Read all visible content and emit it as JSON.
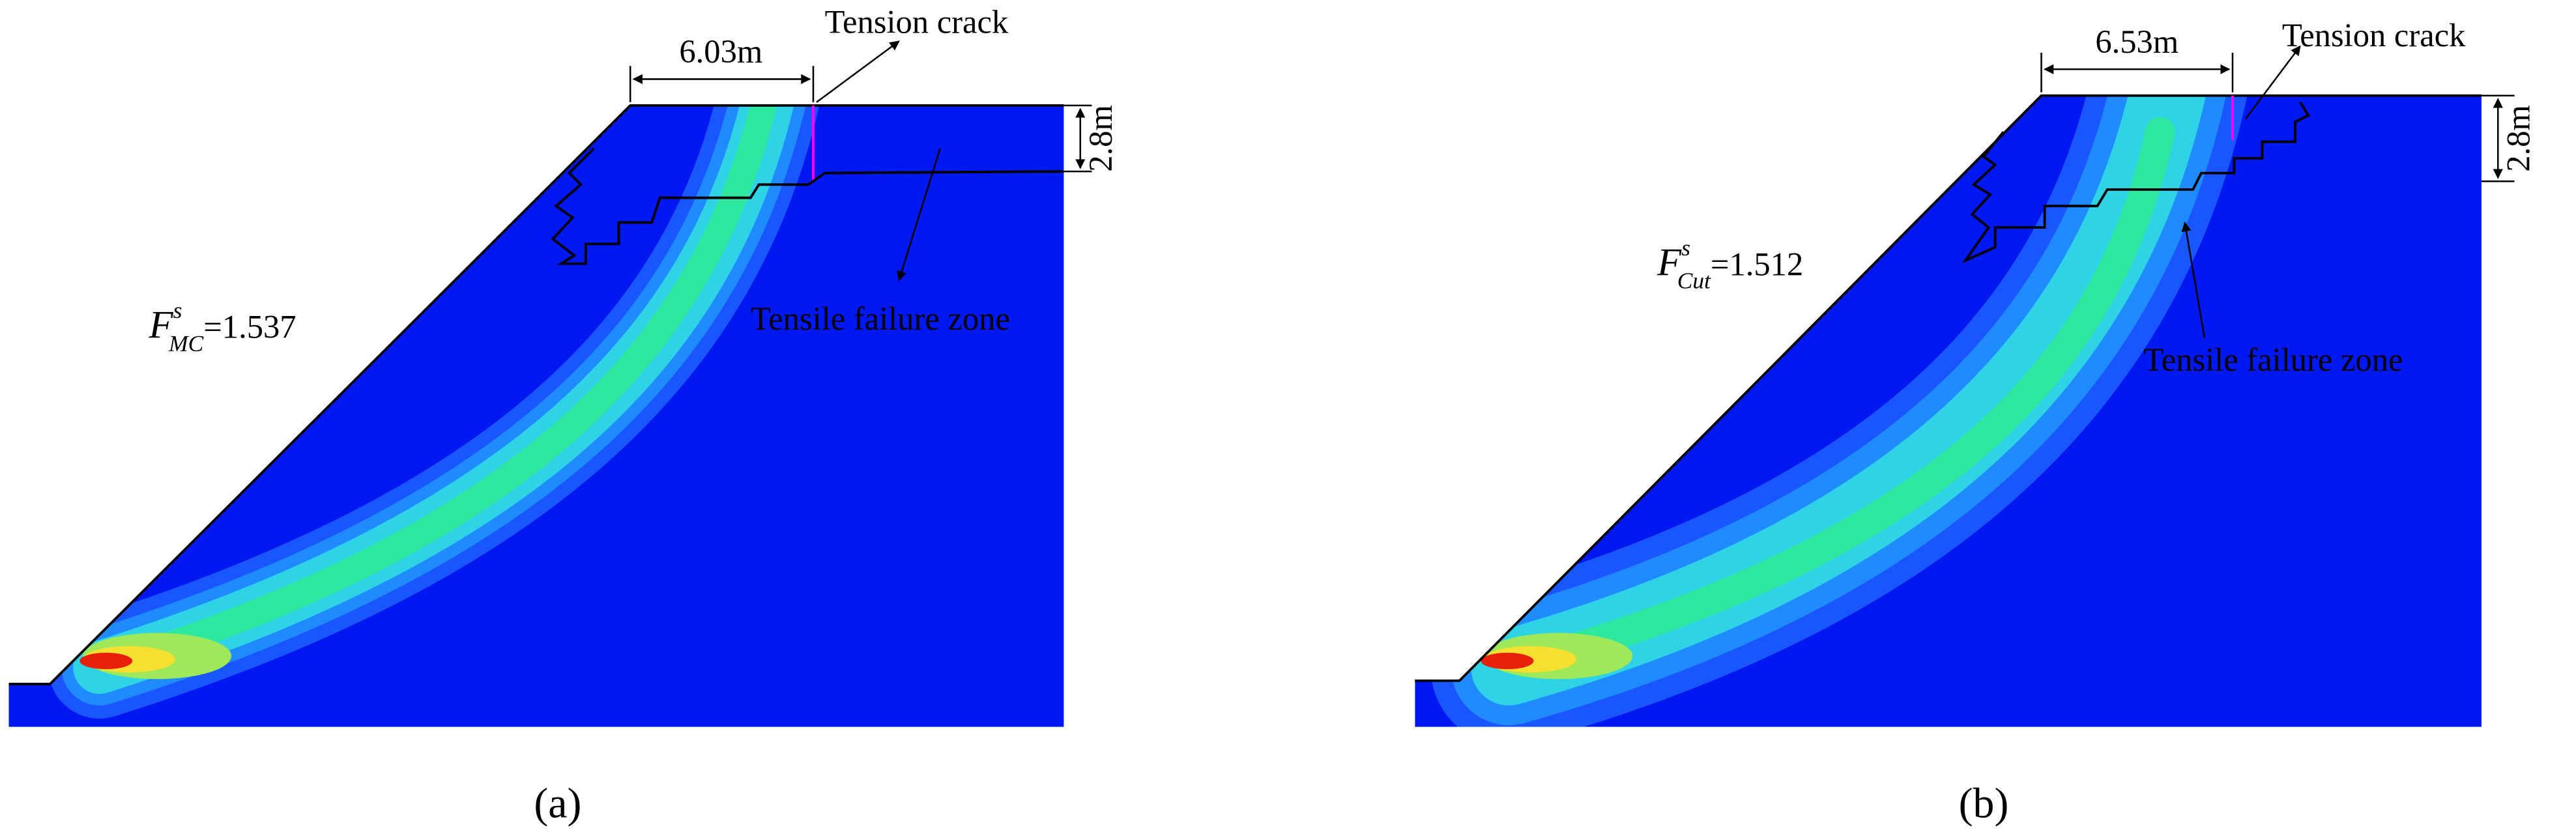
{
  "panels": [
    {
      "width_label": "6.03m",
      "crack_label": "Tension crack",
      "depth_label": "2.8m",
      "zone_label": "Tensile failure zone",
      "factor": {
        "symbol": "F",
        "superscript": "s",
        "subscript": "MC",
        "value": "=1.537"
      },
      "caption": "(a)"
    },
    {
      "width_label": "6.53m",
      "crack_label": "Tension crack",
      "depth_label": "2.8m",
      "zone_label": "Tensile failure zone",
      "factor": {
        "symbol": "F",
        "superscript": "s",
        "subscript": "Cut",
        "value": "=1.512"
      },
      "caption": "(b)"
    }
  ]
}
